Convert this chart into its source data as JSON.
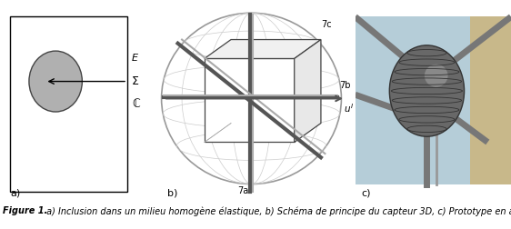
{
  "caption_bold": "Figure 1.",
  "caption_italic": " a) Inclusion dans un milieu homogène élastique, b) Schéma de principe du capteur 3D, c) Prototype en acier",
  "label_a": "a)",
  "label_b": "b)",
  "label_c": "c)",
  "label_E": "E",
  "label_Sigma": "Σ",
  "label_C": "ℂ",
  "label_7a": "7a",
  "label_7b": "7b",
  "label_7c": "7c",
  "label_u": "u",
  "bg_color": "#ffffff",
  "gray_fill": "#b0b0b0",
  "gray_border": "#555555",
  "photo_bg_light": "#b8cdd8",
  "photo_bg_tan": "#c8b898",
  "photo_ball": "#707070",
  "photo_rod": "#888888"
}
